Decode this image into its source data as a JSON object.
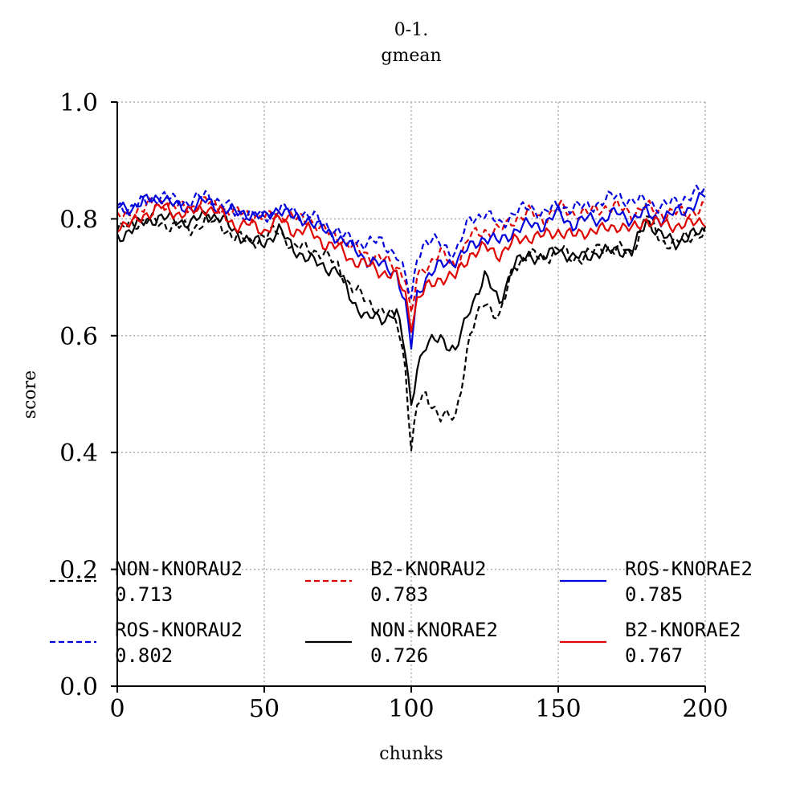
{
  "chart_data": {
    "type": "line",
    "title": "0-1.\ngmean",
    "xlabel": "chunks",
    "ylabel": "score",
    "xlim": [
      0,
      200
    ],
    "ylim": [
      0,
      1
    ],
    "xticks": [
      0,
      50,
      100,
      150,
      200
    ],
    "yticks": [
      0.0,
      0.2,
      0.4,
      0.6,
      0.8,
      1.0
    ],
    "xtick_labels": [
      "0",
      "50",
      "100",
      "150",
      "200"
    ],
    "ytick_labels": [
      "0.0",
      "0.2",
      "0.4",
      "0.6",
      "0.8",
      "1.0"
    ],
    "grid": true,
    "legend_placement": "bottom",
    "x_key": [
      0,
      5,
      10,
      15,
      20,
      25,
      30,
      35,
      40,
      45,
      50,
      55,
      60,
      65,
      70,
      75,
      80,
      85,
      90,
      95,
      98,
      100,
      102,
      105,
      110,
      115,
      120,
      125,
      130,
      135,
      140,
      145,
      150,
      155,
      160,
      165,
      170,
      175,
      180,
      185,
      190,
      195,
      200
    ],
    "series": [
      {
        "name": "NON-KNORAU2",
        "value_label": "0.713",
        "color": "#000000",
        "dash": true,
        "values": [
          0.78,
          0.79,
          0.8,
          0.79,
          0.79,
          0.78,
          0.8,
          0.79,
          0.77,
          0.76,
          0.77,
          0.78,
          0.75,
          0.75,
          0.74,
          0.72,
          0.68,
          0.66,
          0.64,
          0.63,
          0.55,
          0.4,
          0.48,
          0.5,
          0.46,
          0.46,
          0.6,
          0.66,
          0.63,
          0.72,
          0.74,
          0.73,
          0.75,
          0.73,
          0.74,
          0.75,
          0.75,
          0.74,
          0.81,
          0.76,
          0.76,
          0.77,
          0.78
        ]
      },
      {
        "name": "B2-KNORAU2",
        "value_label": "0.783",
        "color": "#e00000",
        "dash": true,
        "values": [
          0.8,
          0.81,
          0.82,
          0.83,
          0.82,
          0.82,
          0.83,
          0.82,
          0.81,
          0.81,
          0.8,
          0.81,
          0.8,
          0.8,
          0.78,
          0.77,
          0.75,
          0.74,
          0.73,
          0.72,
          0.7,
          0.63,
          0.7,
          0.72,
          0.74,
          0.72,
          0.77,
          0.78,
          0.78,
          0.8,
          0.81,
          0.8,
          0.82,
          0.81,
          0.81,
          0.82,
          0.82,
          0.81,
          0.82,
          0.81,
          0.81,
          0.81,
          0.82
        ]
      },
      {
        "name": "ROS-KNORAE2",
        "value_label": "0.785",
        "color": "#0000dd",
        "dash": false,
        "values": [
          0.82,
          0.82,
          0.83,
          0.84,
          0.82,
          0.82,
          0.83,
          0.82,
          0.81,
          0.81,
          0.8,
          0.82,
          0.8,
          0.8,
          0.78,
          0.77,
          0.75,
          0.73,
          0.72,
          0.71,
          0.65,
          0.58,
          0.67,
          0.7,
          0.72,
          0.73,
          0.75,
          0.77,
          0.76,
          0.78,
          0.79,
          0.79,
          0.81,
          0.79,
          0.8,
          0.8,
          0.81,
          0.8,
          0.81,
          0.8,
          0.81,
          0.82,
          0.84
        ]
      },
      {
        "name": "ROS-KNORAU2",
        "value_label": "0.802",
        "color": "#0000dd",
        "dash": true,
        "values": [
          0.82,
          0.82,
          0.83,
          0.84,
          0.83,
          0.83,
          0.84,
          0.83,
          0.81,
          0.81,
          0.8,
          0.82,
          0.81,
          0.81,
          0.79,
          0.78,
          0.76,
          0.76,
          0.76,
          0.74,
          0.7,
          0.66,
          0.74,
          0.76,
          0.76,
          0.74,
          0.8,
          0.81,
          0.79,
          0.81,
          0.82,
          0.81,
          0.82,
          0.82,
          0.82,
          0.83,
          0.84,
          0.83,
          0.83,
          0.82,
          0.83,
          0.84,
          0.85
        ]
      },
      {
        "name": "NON-KNORAE2",
        "value_label": "0.726",
        "color": "#000000",
        "dash": false,
        "values": [
          0.77,
          0.78,
          0.8,
          0.8,
          0.8,
          0.79,
          0.81,
          0.8,
          0.78,
          0.76,
          0.76,
          0.78,
          0.75,
          0.73,
          0.72,
          0.71,
          0.66,
          0.63,
          0.63,
          0.64,
          0.57,
          0.48,
          0.55,
          0.58,
          0.6,
          0.57,
          0.65,
          0.7,
          0.66,
          0.72,
          0.74,
          0.73,
          0.75,
          0.73,
          0.74,
          0.74,
          0.75,
          0.74,
          0.8,
          0.77,
          0.76,
          0.77,
          0.78
        ]
      },
      {
        "name": "B2-KNORAE2",
        "value_label": "0.767",
        "color": "#e00000",
        "dash": false,
        "values": [
          0.79,
          0.79,
          0.81,
          0.82,
          0.81,
          0.81,
          0.82,
          0.81,
          0.79,
          0.79,
          0.78,
          0.8,
          0.78,
          0.78,
          0.76,
          0.75,
          0.73,
          0.72,
          0.71,
          0.7,
          0.67,
          0.62,
          0.66,
          0.68,
          0.7,
          0.7,
          0.74,
          0.75,
          0.74,
          0.76,
          0.77,
          0.77,
          0.78,
          0.77,
          0.78,
          0.78,
          0.79,
          0.78,
          0.8,
          0.79,
          0.79,
          0.79,
          0.8
        ]
      }
    ]
  },
  "colors": {
    "grid": "#b0b0b0",
    "axis": "#000000",
    "blue": "#0000dd",
    "red": "#e00000",
    "black": "#000000"
  }
}
